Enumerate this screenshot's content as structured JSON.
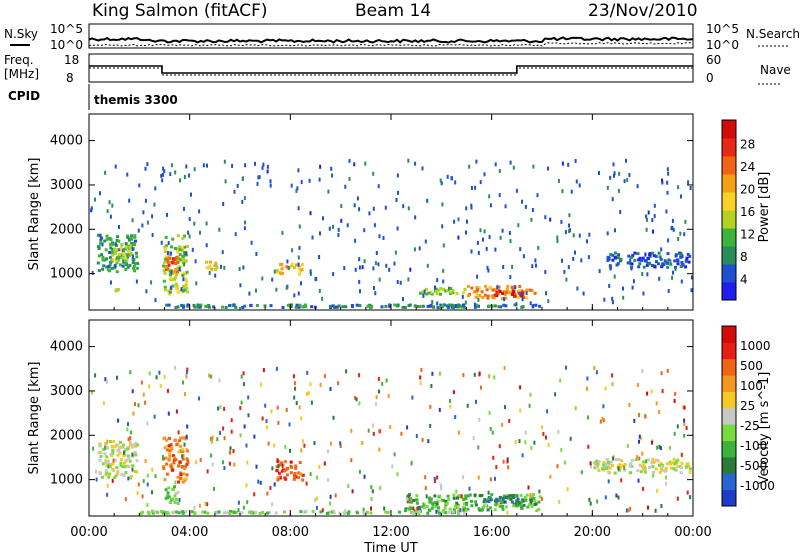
{
  "header": {
    "station": "King Salmon (fitACF)",
    "beam": "Beam 14",
    "date": "23/Nov/2010"
  },
  "param_panels": {
    "nsky_label": "N.Sky",
    "nsearch_label": "N.Search",
    "count_ticks": [
      "10^5",
      "10^0"
    ],
    "freq_label_1": "Freq.",
    "freq_label_2": "[MHz]",
    "freq_ticks": [
      "18",
      "8"
    ],
    "nave_label": "Nave",
    "nave_ticks": [
      "60",
      "0"
    ],
    "cpid_label": "CPID",
    "cpid_value": "themis 3300"
  },
  "chart_data": [
    {
      "type": "heatmap",
      "name": "power",
      "ylabel": "Slant Range [km]",
      "xlabel": "",
      "x_ticks": [
        "00:00",
        "04:00",
        "08:00",
        "12:00",
        "16:00",
        "20:00",
        "00:00"
      ],
      "y_ticks": [
        1000,
        2000,
        3000,
        4000
      ],
      "ylim": [
        180,
        4600
      ],
      "xlim_hours": [
        0,
        24
      ],
      "colorbar": {
        "label": "Power [dB]",
        "ticks": [
          "4",
          "8",
          "12",
          "16",
          "20",
          "24",
          "28"
        ],
        "range": [
          0,
          30
        ],
        "colors": [
          "#1e1ef0",
          "#1e50d2",
          "#2a8c5a",
          "#3cb43c",
          "#b4d21e",
          "#fad228",
          "#f5a014",
          "#f06414",
          "#e62814",
          "#d20a0a"
        ]
      },
      "regions": [
        {
          "t0": 0.3,
          "t1": 2.0,
          "r0": 1000,
          "r1": 1900,
          "level": 0.25
        },
        {
          "t0": 0.8,
          "t1": 1.8,
          "r0": 1200,
          "r1": 1700,
          "level": 0.45
        },
        {
          "t0": 1.0,
          "t1": 1.4,
          "r0": 550,
          "r1": 700,
          "level": 0.35
        },
        {
          "t0": 2.9,
          "t1": 4.0,
          "r0": 500,
          "r1": 1900,
          "level": 0.45
        },
        {
          "t0": 3.0,
          "t1": 3.6,
          "r0": 900,
          "r1": 1400,
          "level": 0.75
        },
        {
          "t0": 4.5,
          "t1": 5.2,
          "r0": 1050,
          "r1": 1300,
          "level": 0.55
        },
        {
          "t0": 7.4,
          "t1": 8.6,
          "r0": 950,
          "r1": 1250,
          "level": 0.6
        },
        {
          "t0": 13.0,
          "t1": 15.0,
          "r0": 500,
          "r1": 700,
          "level": 0.4
        },
        {
          "t0": 15.0,
          "t1": 17.8,
          "r0": 400,
          "r1": 750,
          "level": 0.7
        },
        {
          "t0": 16.0,
          "t1": 17.3,
          "r0": 450,
          "r1": 650,
          "level": 0.95
        },
        {
          "t0": 20.5,
          "t1": 24.0,
          "r0": 1100,
          "r1": 1500,
          "level": 0.12
        },
        {
          "t0": 3.0,
          "t1": 18.0,
          "r0": 200,
          "r1": 330,
          "level": 0.2
        }
      ]
    },
    {
      "type": "heatmap",
      "name": "velocity",
      "ylabel": "Slant Range [km]",
      "xlabel": "Time UT",
      "x_ticks": [
        "00:00",
        "04:00",
        "08:00",
        "12:00",
        "16:00",
        "20:00",
        "00:00"
      ],
      "y_ticks": [
        1000,
        2000,
        3000,
        4000
      ],
      "ylim": [
        180,
        4600
      ],
      "xlim_hours": [
        0,
        24
      ],
      "colorbar": {
        "label": "Velocity [m s^-1]",
        "ticks": [
          "1000",
          "500",
          "100",
          "25",
          "-25",
          "-100",
          "-500",
          "-1000"
        ],
        "colors": [
          "#1e3cc8",
          "#2864d2",
          "#2a7a3a",
          "#3cb43c",
          "#78dc3c",
          "#c8c8c8",
          "#f5c828",
          "#f5961e",
          "#f06414",
          "#e61e14",
          "#d20a0a"
        ]
      },
      "regions": [
        {
          "t0": 0.3,
          "t1": 2.0,
          "r0": 1000,
          "r1": 1900,
          "level": 0.5
        },
        {
          "t0": 2.9,
          "t1": 4.0,
          "r0": 900,
          "r1": 2000,
          "level": 0.75
        },
        {
          "t0": 3.0,
          "t1": 3.6,
          "r0": 400,
          "r1": 900,
          "level": 0.35
        },
        {
          "t0": 7.4,
          "t1": 8.6,
          "r0": 950,
          "r1": 1450,
          "level": 0.85
        },
        {
          "t0": 12.5,
          "t1": 18.0,
          "r0": 250,
          "r1": 700,
          "level": 0.3
        },
        {
          "t0": 15.5,
          "t1": 17.2,
          "r0": 450,
          "r1": 680,
          "level": 0.15
        },
        {
          "t0": 20.0,
          "t1": 24.0,
          "r0": 1100,
          "r1": 1500,
          "level": 0.5
        },
        {
          "t0": 2.0,
          "t1": 15.0,
          "r0": 200,
          "r1": 320,
          "level": 0.4
        }
      ]
    }
  ]
}
